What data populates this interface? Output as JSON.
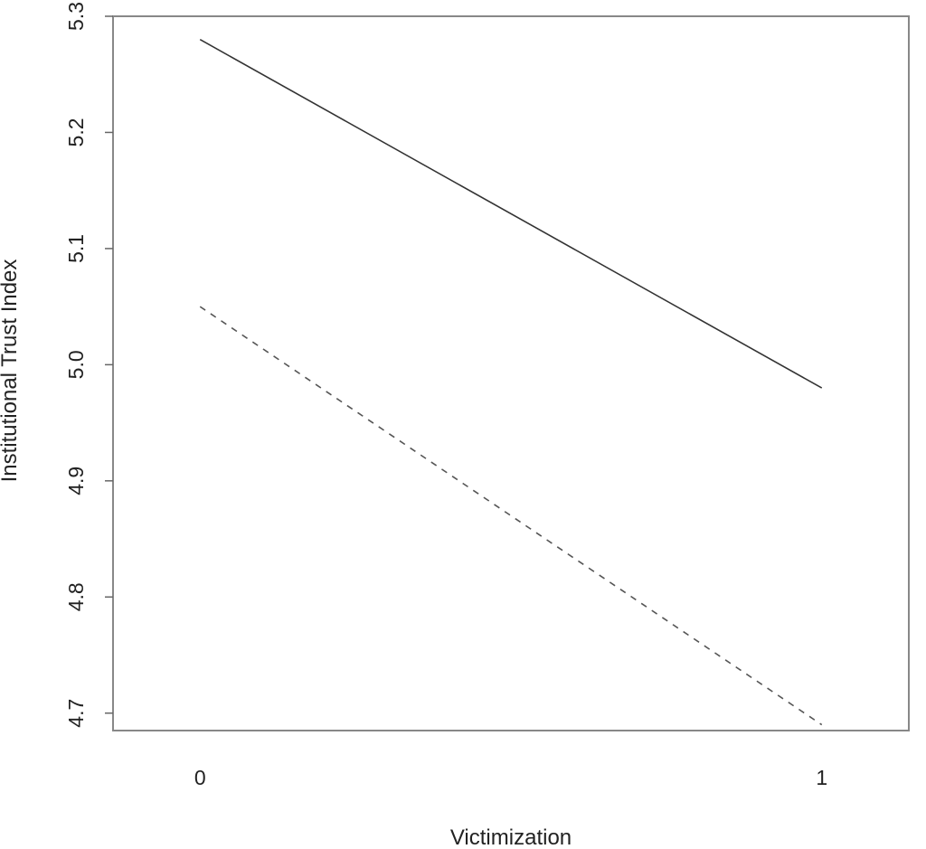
{
  "chart_data": {
    "type": "line",
    "title": "",
    "xlabel": "Victimization",
    "ylabel": "Institutional Trust Index",
    "x_ticks": [
      0,
      1
    ],
    "x_tick_labels": [
      "0",
      "1"
    ],
    "y_ticks": [
      4.7,
      4.8,
      4.9,
      5.0,
      5.1,
      5.2,
      5.3
    ],
    "y_tick_labels": [
      "4.7",
      "4.8",
      "4.9",
      "5.0",
      "5.1",
      "5.2",
      "5.3"
    ],
    "xlim": [
      -0.14,
      1.14
    ],
    "ylim": [
      4.685,
      5.3
    ],
    "grid": false,
    "legend": "none",
    "series": [
      {
        "line_style": "solid",
        "color": "#333333",
        "x": [
          0,
          1
        ],
        "y": [
          5.28,
          4.98
        ]
      },
      {
        "line_style": "dashed",
        "color": "#555555",
        "x": [
          0,
          1
        ],
        "y": [
          5.05,
          4.69
        ]
      }
    ]
  }
}
